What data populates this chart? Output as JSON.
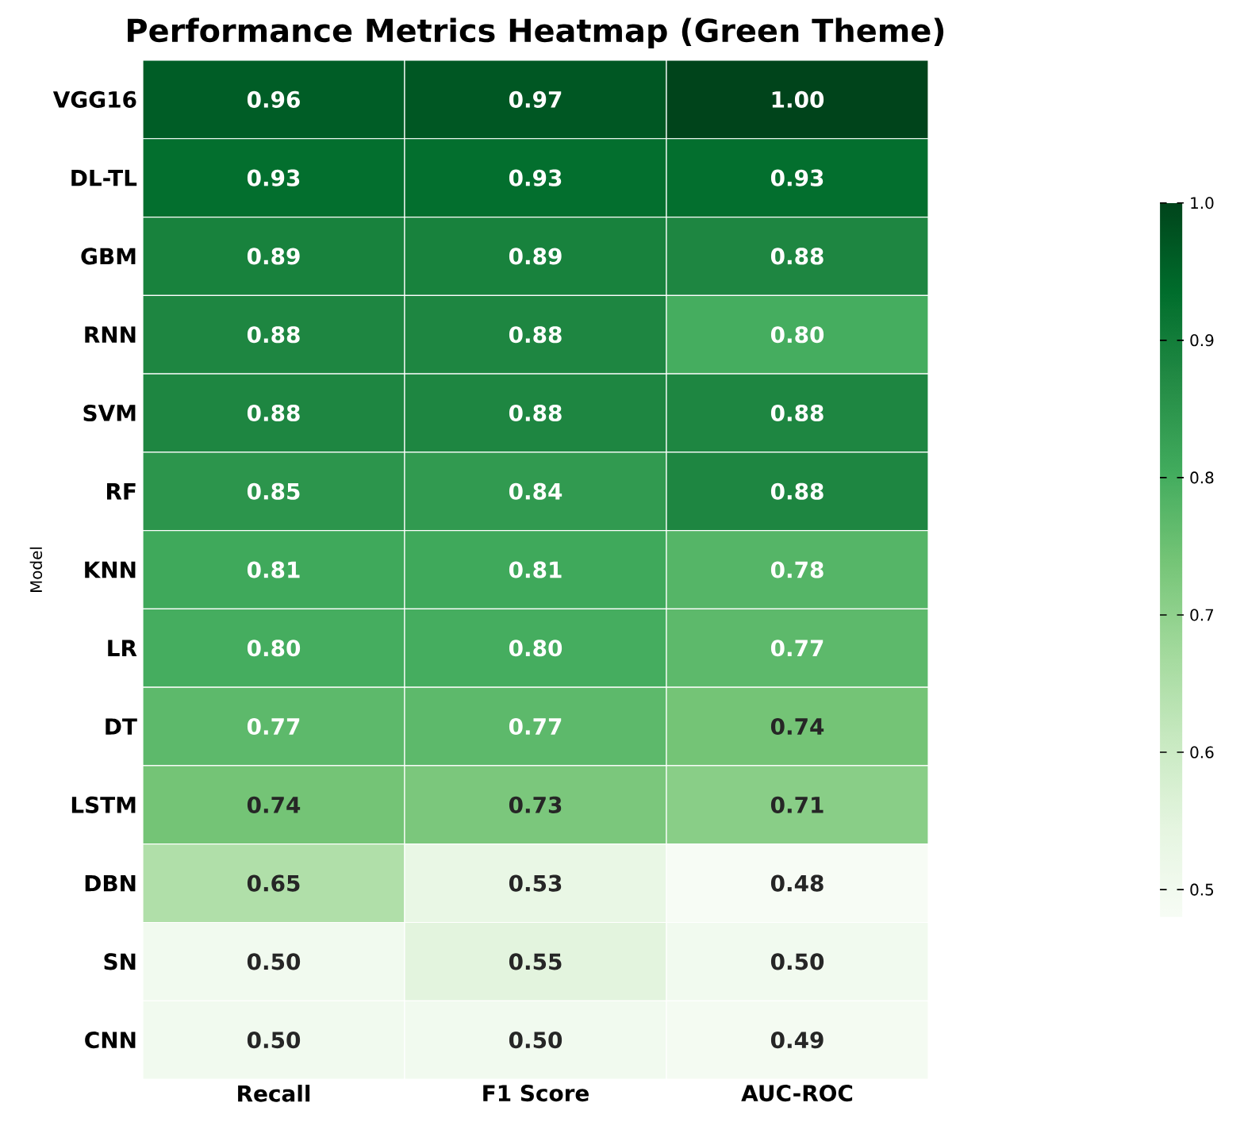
{
  "chart_data": {
    "type": "heatmap",
    "title": "Performance Metrics Heatmap (Green Theme)",
    "ylabel": "Model",
    "categories": [
      "Recall",
      "F1 Score",
      "AUC-ROC"
    ],
    "y_categories": [
      "VGG16",
      "DL-TL",
      "GBM",
      "RNN",
      "SVM",
      "RF",
      "KNN",
      "LR",
      "DT",
      "LSTM",
      "DBN",
      "SN",
      "CNN"
    ],
    "cells": [
      [
        0.96,
        0.97,
        1.0
      ],
      [
        0.93,
        0.93,
        0.93
      ],
      [
        0.89,
        0.89,
        0.88
      ],
      [
        0.88,
        0.88,
        0.8
      ],
      [
        0.88,
        0.88,
        0.88
      ],
      [
        0.85,
        0.84,
        0.88
      ],
      [
        0.81,
        0.81,
        0.78
      ],
      [
        0.8,
        0.8,
        0.77
      ],
      [
        0.77,
        0.77,
        0.74
      ],
      [
        0.74,
        0.73,
        0.71
      ],
      [
        0.65,
        0.53,
        0.48
      ],
      [
        0.5,
        0.55,
        0.5
      ],
      [
        0.5,
        0.5,
        0.49
      ]
    ],
    "cell_labels": [
      [
        "0.96",
        "0.97",
        "1.00"
      ],
      [
        "0.93",
        "0.93",
        "0.93"
      ],
      [
        "0.89",
        "0.89",
        "0.88"
      ],
      [
        "0.88",
        "0.88",
        "0.80"
      ],
      [
        "0.88",
        "0.88",
        "0.88"
      ],
      [
        "0.85",
        "0.84",
        "0.88"
      ],
      [
        "0.81",
        "0.81",
        "0.78"
      ],
      [
        "0.80",
        "0.80",
        "0.77"
      ],
      [
        "0.77",
        "0.77",
        "0.74"
      ],
      [
        "0.74",
        "0.73",
        "0.71"
      ],
      [
        "0.65",
        "0.53",
        "0.48"
      ],
      [
        "0.50",
        "0.55",
        "0.50"
      ],
      [
        "0.50",
        "0.50",
        "0.49"
      ]
    ],
    "data_labels": true,
    "clim": [
      0.48,
      1.0
    ],
    "cticks": [
      0.5,
      0.6,
      0.7,
      0.8,
      0.9,
      {
        "value": 1.0,
        "label": "1.0"
      }
    ]
  }
}
